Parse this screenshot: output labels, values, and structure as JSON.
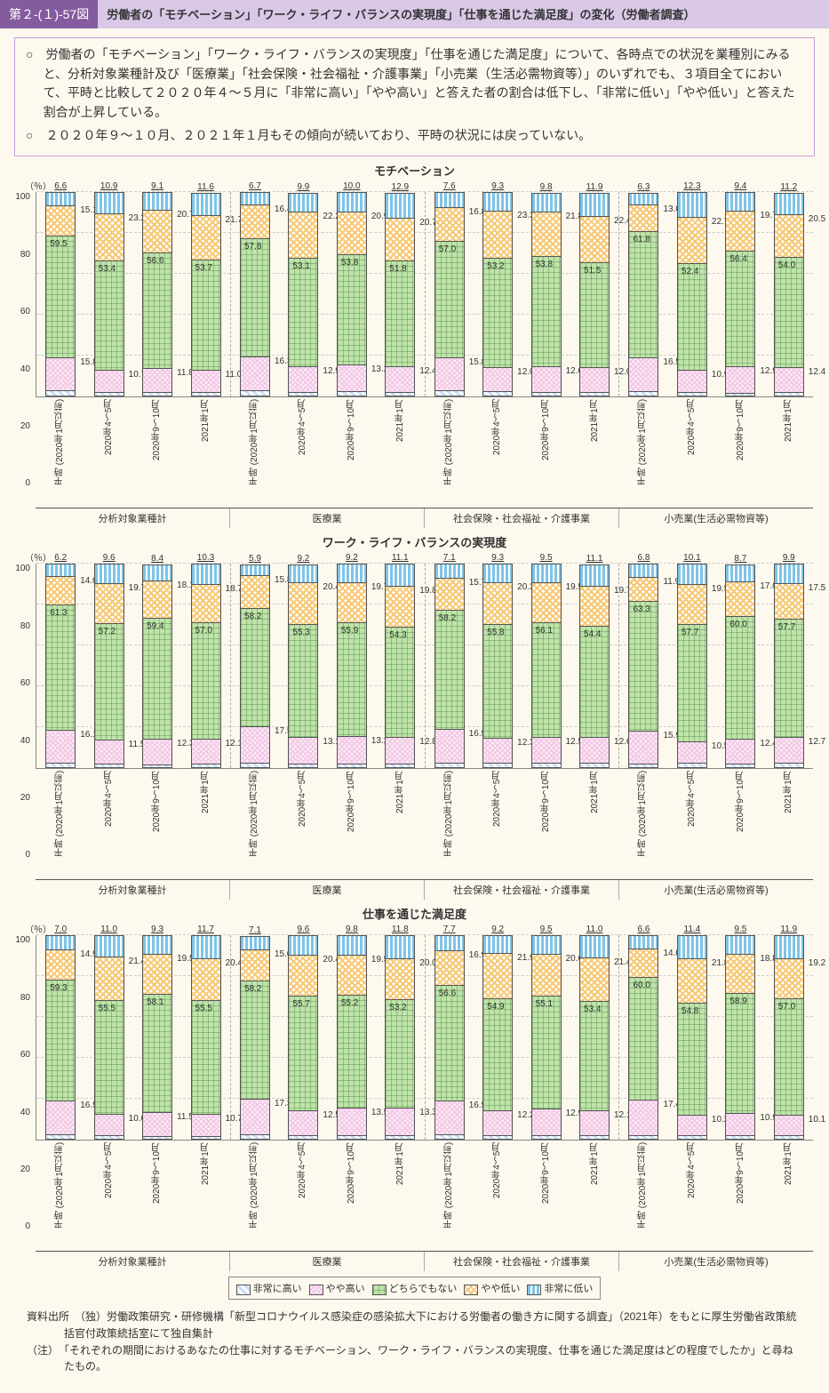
{
  "header": {
    "tag": "第２-(１)-57図",
    "title": "労働者の「モチベーション」「ワーク・ライフ・バランスの実現度」「仕事を通じた満足度」の変化（労働者調査）"
  },
  "bullets": [
    "○　労働者の「モチベーション」「ワーク・ライフ・バランスの実現度」「仕事を通じた満足度」について、各時点での状況を業種別にみると、分析対象業種計及び「医療業」「社会保険・社会福祉・介護事業」「小売業（生活必需物資等）」のいずれでも、３項目全てにおいて、平時と比較して２０２０年４～５月に「非常に高い」「やや高い」と答えた者の割合は低下し、「非常に低い」「やや低い」と答えた割合が上昇している。",
    "○　２０２０年９～１０月、２０２１年１月もその傾向が続いており、平時の状況には戻っていない。"
  ],
  "yUnit": "（％）",
  "ymax": 100,
  "ytick_step": 20,
  "colors": {
    "p1": "#c7e0f7",
    "p2": "#f3cbe6",
    "p3": "#bfe3a9",
    "p4": "#f7c874",
    "p5": "#7fc4e6",
    "bg": "#fdf9ee",
    "border": "#855b9f"
  },
  "categories": [
    "非常に高い",
    "やや高い",
    "どちらでもない",
    "やや低い",
    "非常に低い"
  ],
  "periods": [
    "平時\n(2020年1月以前)",
    "2020年4～5月",
    "2020年9～10月",
    "2021年1月"
  ],
  "groups": [
    "分析対象業種計",
    "医療業",
    "社会保険・社会福祉・介護事業",
    "小売業(生活必需物資等)"
  ],
  "charts": [
    {
      "title": "モチベーション",
      "data": [
        [
          [
            3.0,
            15.8,
            59.5,
            15.1,
            6.6
          ],
          [
            2.0,
            10.7,
            53.4,
            23.2,
            10.9
          ],
          [
            1.8,
            11.8,
            56.6,
            20.7,
            9.1
          ],
          [
            1.9,
            11.0,
            53.7,
            21.7,
            11.6
          ]
        ],
        [
          [
            3.0,
            16.3,
            57.8,
            16.4,
            6.7
          ],
          [
            1.8,
            12.9,
            53.1,
            22.2,
            9.9
          ],
          [
            2.2,
            13.2,
            53.8,
            20.9,
            10.0
          ],
          [
            2.1,
            12.4,
            51.8,
            20.7,
            12.9
          ]
        ],
        [
          [
            3.0,
            15.8,
            57.0,
            16.8,
            7.6
          ],
          [
            2.2,
            12.0,
            53.2,
            23.3,
            9.3
          ],
          [
            1.9,
            12.6,
            53.8,
            21.8,
            9.8
          ],
          [
            2.1,
            12.0,
            51.5,
            22.4,
            11.9
          ]
        ],
        [
          [
            2.2,
            16.5,
            61.8,
            13.0,
            6.3
          ],
          [
            1.8,
            10.9,
            52.4,
            22.7,
            12.3
          ],
          [
            1.6,
            12.9,
            56.4,
            19.7,
            9.4
          ],
          [
            1.8,
            12.4,
            54.0,
            20.5,
            11.2
          ]
        ]
      ]
    },
    {
      "title": "ワーク・ライフ・バランスの実現度",
      "data": [
        [
          [
            2.4,
            16.1,
            61.3,
            14.0,
            6.2
          ],
          [
            2.0,
            11.5,
            57.2,
            19.7,
            9.6
          ],
          [
            1.7,
            12.3,
            59.4,
            18.1,
            8.4
          ],
          [
            1.9,
            12.1,
            57.0,
            18.7,
            10.3
          ]
        ],
        [
          [
            2.5,
            17.5,
            58.2,
            15.8,
            5.9
          ],
          [
            1.8,
            13.1,
            55.3,
            20.4,
            9.2
          ],
          [
            2.0,
            13.2,
            55.9,
            19.7,
            9.2
          ],
          [
            2.0,
            12.8,
            54.3,
            19.8,
            11.1
          ]
        ],
        [
          [
            2.5,
            16.5,
            58.2,
            15.7,
            7.1
          ],
          [
            2.3,
            12.3,
            55.8,
            20.3,
            9.3
          ],
          [
            2.4,
            12.5,
            56.1,
            19.5,
            9.5
          ],
          [
            2.2,
            12.6,
            54.4,
            19.7,
            11.1
          ]
        ],
        [
          [
            2.1,
            15.9,
            63.3,
            11.9,
            6.8
          ],
          [
            2.2,
            10.5,
            57.7,
            19.5,
            10.1
          ],
          [
            1.8,
            12.4,
            60.0,
            17.0,
            8.7
          ],
          [
            2.2,
            12.7,
            57.7,
            17.5,
            9.9
          ]
        ]
      ]
    },
    {
      "title": "仕事を通じた満足度",
      "data": [
        [
          [
            2.3,
            16.5,
            59.3,
            14.9,
            7.0
          ],
          [
            1.9,
            10.6,
            55.5,
            21.4,
            11.0
          ],
          [
            1.6,
            11.5,
            58.1,
            19.5,
            9.3
          ],
          [
            1.7,
            10.7,
            55.5,
            20.4,
            11.7
          ]
        ],
        [
          [
            2.3,
            17.3,
            58.2,
            15.0,
            7.1
          ],
          [
            1.8,
            12.5,
            55.7,
            20.4,
            9.6
          ],
          [
            2.0,
            13.5,
            55.2,
            19.5,
            9.8
          ],
          [
            2.0,
            13.3,
            53.2,
            20.0,
            11.8
          ]
        ],
        [
          [
            2.3,
            16.5,
            56.6,
            16.9,
            7.7
          ],
          [
            2.0,
            12.2,
            54.9,
            21.9,
            9.2
          ],
          [
            2.0,
            12.9,
            55.1,
            20.6,
            9.5
          ],
          [
            2.1,
            12.1,
            53.4,
            21.4,
            11.0
          ]
        ],
        [
          [
            2.0,
            17.4,
            60.0,
            14.0,
            6.6
          ],
          [
            1.8,
            10.2,
            54.8,
            21.8,
            11.4
          ],
          [
            1.9,
            10.9,
            58.9,
            18.8,
            9.5
          ],
          [
            2.0,
            10.1,
            57.0,
            19.2,
            11.9
          ]
        ]
      ]
    }
  ],
  "footer": {
    "source": "資料出所　（独）労働政策研究・研修機構「新型コロナウイルス感染症の感染拡大下における労働者の働き方に関する調査」（2021年）をもとに厚生労働省政策統括官付政策統括室にて独自集計",
    "note": "（注）　「それぞれの期間におけるあなたの仕事に対するモチベーション、ワーク・ライフ・バランスの実現度、仕事を通じた満足度はどの程度でしたか」と尋ねたもの。"
  }
}
